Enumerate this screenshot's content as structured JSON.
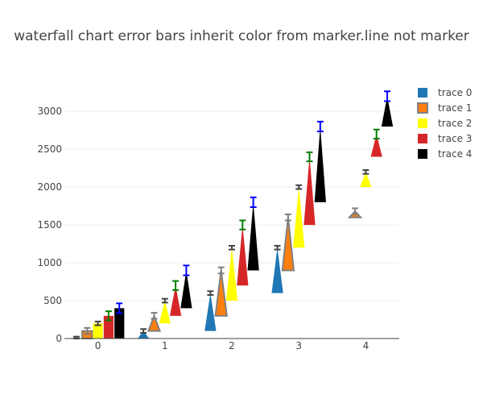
{
  "chart_data": {
    "type": "waterfall",
    "title": "waterfall chart error bars inherit color from marker.line not marker",
    "categories": [
      "0",
      "1",
      "2",
      "3",
      "4"
    ],
    "ylim": [
      0,
      3300
    ],
    "yticks": [
      0,
      500,
      1000,
      1500,
      2000,
      2500,
      3000
    ],
    "grid": true,
    "legend_position": "top-right",
    "series": [
      {
        "name": "trace 0",
        "color": "#1f77b4",
        "line_color": "#444444",
        "error": 25,
        "values": [
          0,
          100,
          500,
          600,
          null
        ]
      },
      {
        "name": "trace 1",
        "color": "#ff7f0e",
        "line_color": "#808080",
        "error": 40,
        "values": [
          100,
          200,
          600,
          700,
          80
        ]
      },
      {
        "name": "trace 2",
        "color": "#ffff00",
        "line_color": "#444444",
        "error": 25,
        "values": [
          200,
          300,
          700,
          800,
          200
        ]
      },
      {
        "name": "trace 3",
        "color": "#d62728",
        "line_color": "#008000",
        "error": 60,
        "values": [
          300,
          400,
          800,
          900,
          300
        ]
      },
      {
        "name": "trace 4",
        "color": "#000000",
        "line_color": "#0000ff",
        "error": 65,
        "values": [
          400,
          500,
          900,
          1000,
          400
        ]
      }
    ]
  }
}
